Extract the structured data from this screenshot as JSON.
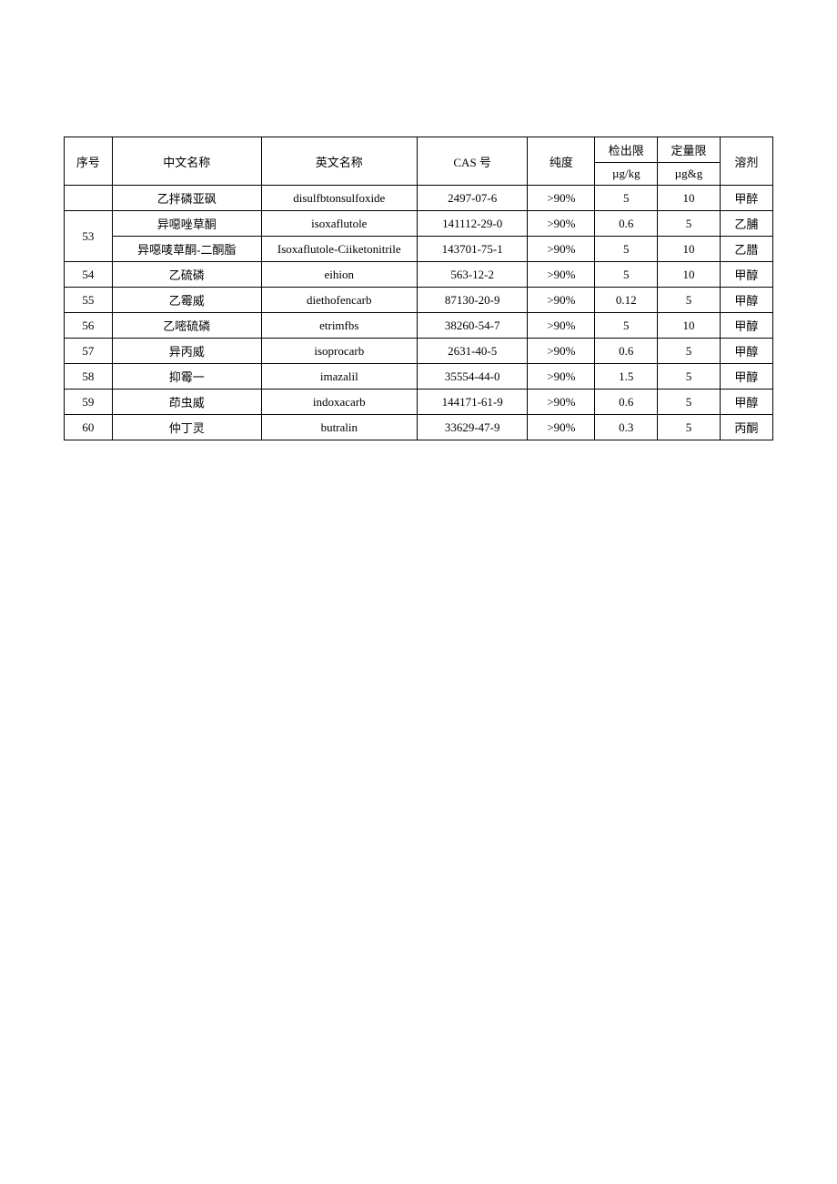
{
  "table": {
    "headers": {
      "seq": "序号",
      "cn_name": "中文名称",
      "en_name": "英文名称",
      "cas": "CAS 号",
      "purity": "纯度",
      "detection": "检出限",
      "detection_unit": "µg/kg",
      "quant": "定量限",
      "quant_unit": "µg&g",
      "solvent": "溶剂"
    },
    "colors": {
      "border": "#000000",
      "text": "#000000",
      "background": "#ffffff"
    },
    "font_size": 13,
    "rows": [
      {
        "seq": "",
        "cn": "乙拌磷亚砜",
        "en": "disulfbtonsulfoxide",
        "cas": "2497-07-6",
        "purity": ">90%",
        "det": "5",
        "quant": "10",
        "solvent": "甲醉"
      },
      {
        "seq": "53",
        "span": 2,
        "sub": [
          {
            "cn": "异噁唑草酮",
            "en": "isoxaflutole",
            "cas": "141112-29-0",
            "purity": ">90%",
            "det": "0.6",
            "quant": "5",
            "solvent": "乙脯"
          },
          {
            "cn": "异噁唛草酮-二酮脂",
            "en": "Isoxaflutole-Ciiketonitrile",
            "cas": "143701-75-1",
            "purity": ">90%",
            "det": "5",
            "quant": "10",
            "solvent": "乙腊"
          }
        ]
      },
      {
        "seq": "54",
        "cn": "乙硫磷",
        "en": "eihion",
        "cas": "563-12-2",
        "purity": ">90%",
        "det": "5",
        "quant": "10",
        "solvent": "甲醇"
      },
      {
        "seq": "55",
        "cn": "乙霉威",
        "en": "diethofencarb",
        "cas": "87130-20-9",
        "purity": ">90%",
        "det": "0.12",
        "quant": "5",
        "solvent": "甲醇"
      },
      {
        "seq": "56",
        "cn": "乙嘧硫磷",
        "en": "etrimfbs",
        "cas": "38260-54-7",
        "purity": ">90%",
        "det": "5",
        "quant": "10",
        "solvent": "甲醇"
      },
      {
        "seq": "57",
        "cn": "异丙威",
        "en": "isoprocarb",
        "cas": "2631-40-5",
        "purity": ">90%",
        "det": "0.6",
        "quant": "5",
        "solvent": "甲醇"
      },
      {
        "seq": "58",
        "cn": "抑霉一",
        "en": "imazalil",
        "cas": "35554-44-0",
        "purity": ">90%",
        "det": "1.5",
        "quant": "5",
        "solvent": "甲醇"
      },
      {
        "seq": "59",
        "cn": "茚虫威",
        "en": "indoxacarb",
        "cas": "144171-61-9",
        "purity": ">90%",
        "det": "0.6",
        "quant": "5",
        "solvent": "甲醇"
      },
      {
        "seq": "60",
        "cn": "仲丁灵",
        "en": "butralin",
        "cas": "33629-47-9",
        "purity": ">90%",
        "det": "0.3",
        "quant": "5",
        "solvent": "丙酮"
      }
    ]
  }
}
